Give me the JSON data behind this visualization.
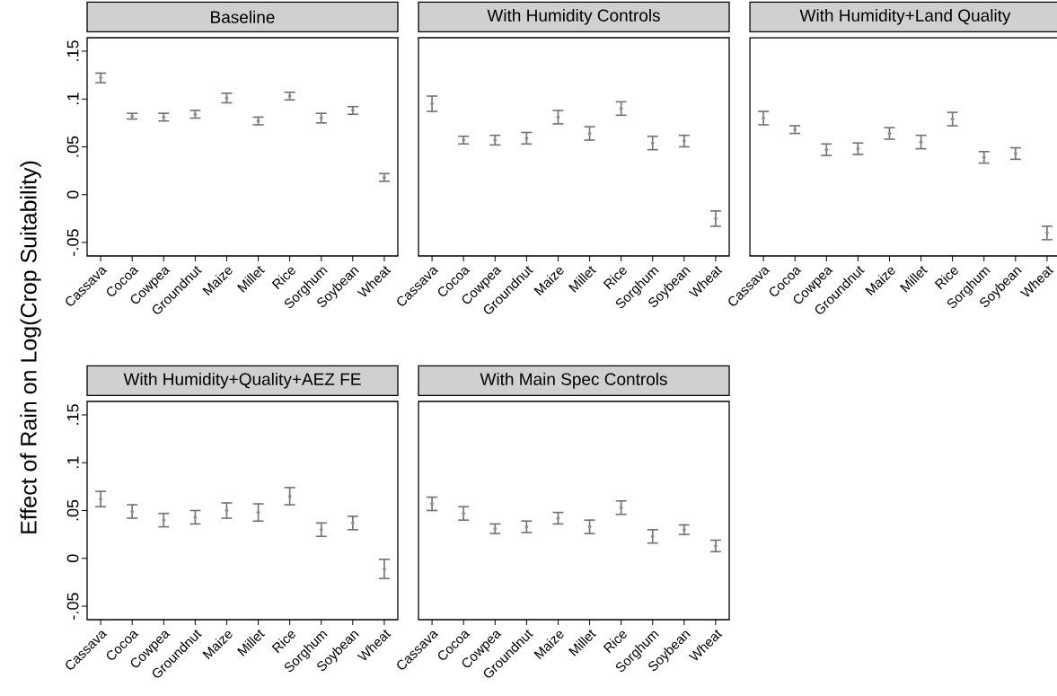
{
  "chart_data": [
    {
      "type": "scatter",
      "title": "Baseline",
      "ylabel": "Effect of Rain on Log(Crop Suitability)",
      "categories": [
        "Cassava",
        "Cocoa",
        "Cowpea",
        "Groundnut",
        "Maize",
        "Millet",
        "Rice",
        "Sorghum",
        "Soybean",
        "Wheat"
      ],
      "values": [
        0.122,
        0.082,
        0.081,
        0.084,
        0.101,
        0.077,
        0.103,
        0.08,
        0.088,
        0.018
      ],
      "errors": [
        0.005,
        0.003,
        0.004,
        0.004,
        0.005,
        0.004,
        0.004,
        0.005,
        0.004,
        0.004
      ],
      "color": "#8c8c8c",
      "marker": "diamond",
      "ylim": [
        -0.064,
        0.164
      ],
      "yticks": [
        {
          "value": -0.05,
          "label": "-.05"
        },
        0,
        {
          "value": 0.05,
          "label": ".05"
        },
        {
          "value": 0.1,
          "label": ".1"
        },
        {
          "value": 0.15,
          "label": ".15"
        }
      ]
    },
    {
      "type": "scatter",
      "title": "With Humidity Controls",
      "categories": [
        "Cassava",
        "Cocoa",
        "Cowpea",
        "Groundnut",
        "Maize",
        "Millet",
        "Rice",
        "Sorghum",
        "Soybean",
        "Wheat"
      ],
      "values": [
        0.095,
        0.057,
        0.057,
        0.059,
        0.081,
        0.064,
        0.09,
        0.054,
        0.056,
        -0.025
      ],
      "errors": [
        0.008,
        0.004,
        0.005,
        0.006,
        0.007,
        0.007,
        0.007,
        0.007,
        0.006,
        0.008
      ],
      "color": "#8c8c8c",
      "marker": "diamond",
      "ylim": [
        -0.064,
        0.164
      ],
      "tick_labels": "x"
    },
    {
      "type": "scatter",
      "title": "With Humidity+Land Quality",
      "categories": [
        "Cassava",
        "Cocoa",
        "Cowpea",
        "Groundnut",
        "Maize",
        "Millet",
        "Rice",
        "Sorghum",
        "Soybean",
        "Wheat"
      ],
      "values": [
        0.08,
        0.068,
        0.047,
        0.048,
        0.064,
        0.055,
        0.079,
        0.039,
        0.043,
        -0.04
      ],
      "errors": [
        0.007,
        0.004,
        0.006,
        0.006,
        0.006,
        0.007,
        0.007,
        0.006,
        0.006,
        0.007
      ],
      "color": "#8c8c8c",
      "marker": "diamond",
      "ylim": [
        -0.064,
        0.164
      ],
      "tick_labels": "x"
    },
    {
      "type": "scatter",
      "title": "With Humidity+Quality+AEZ FE",
      "categories": [
        "Cassava",
        "Cocoa",
        "Cowpea",
        "Groundnut",
        "Maize",
        "Millet",
        "Rice",
        "Sorghum",
        "Soybean",
        "Wheat"
      ],
      "values": [
        0.062,
        0.049,
        0.04,
        0.043,
        0.05,
        0.048,
        0.065,
        0.03,
        0.037,
        -0.011
      ],
      "errors": [
        0.008,
        0.007,
        0.007,
        0.007,
        0.008,
        0.009,
        0.009,
        0.007,
        0.007,
        0.01
      ],
      "color": "#8c8c8c",
      "marker": "diamond",
      "ylim": [
        -0.064,
        0.164
      ],
      "yticks": [
        {
          "value": -0.05,
          "label": "-.05"
        },
        0,
        {
          "value": 0.05,
          "label": ".05"
        },
        {
          "value": 0.1,
          "label": ".1"
        },
        {
          "value": 0.15,
          "label": ".15"
        }
      ]
    },
    {
      "type": "scatter",
      "title": "With Main Spec Controls",
      "categories": [
        "Cassava",
        "Cocoa",
        "Cowpea",
        "Groundnut",
        "Maize",
        "Millet",
        "Rice",
        "Sorghum",
        "Soybean",
        "Wheat"
      ],
      "values": [
        0.057,
        0.047,
        0.031,
        0.033,
        0.042,
        0.033,
        0.053,
        0.023,
        0.03,
        0.013
      ],
      "errors": [
        0.007,
        0.007,
        0.005,
        0.006,
        0.006,
        0.007,
        0.007,
        0.007,
        0.005,
        0.006
      ],
      "color": "#8c8c8c",
      "marker": "diamond",
      "ylim": [
        -0.064,
        0.164
      ],
      "tick_labels": "x"
    }
  ]
}
